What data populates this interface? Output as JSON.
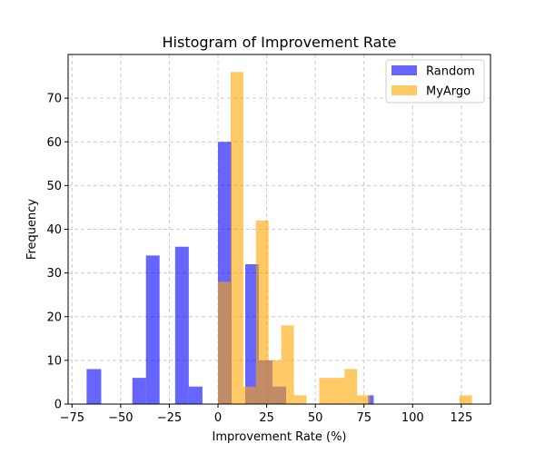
{
  "chart_data": {
    "type": "bar",
    "title": "Histogram of Improvement Rate",
    "xlabel": "Improvement Rate (%)",
    "ylabel": "Frequency",
    "xlim": [
      -77,
      140
    ],
    "ylim": [
      0,
      80
    ],
    "xticks": [
      -75,
      -50,
      -25,
      0,
      25,
      50,
      75,
      100,
      125
    ],
    "yticks": [
      0,
      10,
      20,
      30,
      40,
      50,
      60,
      70
    ],
    "grid": true,
    "legend_position": "top-right",
    "series": [
      {
        "name": "Random",
        "color": "#0000ff",
        "opacity": 0.6,
        "bins": [
          {
            "x0": -67.5,
            "x1": -60,
            "count": 8
          },
          {
            "x0": -44,
            "x1": -37,
            "count": 6
          },
          {
            "x0": -37,
            "x1": -30,
            "count": 34
          },
          {
            "x0": -22,
            "x1": -15,
            "count": 36
          },
          {
            "x0": -15,
            "x1": -8,
            "count": 4
          },
          {
            "x0": 0,
            "x1": 7,
            "count": 60
          },
          {
            "x0": 14,
            "x1": 21,
            "count": 32
          },
          {
            "x0": 21,
            "x1": 28,
            "count": 10
          },
          {
            "x0": 28,
            "x1": 35,
            "count": 4
          },
          {
            "x0": 77,
            "x1": 80,
            "count": 2
          }
        ]
      },
      {
        "name": "MyArgo",
        "color": "#ffa500",
        "opacity": 0.6,
        "bins": [
          {
            "x0": 0,
            "x1": 6.5,
            "count": 28
          },
          {
            "x0": 6.5,
            "x1": 13,
            "count": 76
          },
          {
            "x0": 13,
            "x1": 19.5,
            "count": 4
          },
          {
            "x0": 19.5,
            "x1": 26,
            "count": 42
          },
          {
            "x0": 26,
            "x1": 32.5,
            "count": 10
          },
          {
            "x0": 32.5,
            "x1": 39,
            "count": 18
          },
          {
            "x0": 39,
            "x1": 45.5,
            "count": 2
          },
          {
            "x0": 52,
            "x1": 58.5,
            "count": 6
          },
          {
            "x0": 58.5,
            "x1": 65,
            "count": 6
          },
          {
            "x0": 65,
            "x1": 71.5,
            "count": 8
          },
          {
            "x0": 71.5,
            "x1": 78,
            "count": 2
          },
          {
            "x0": 124,
            "x1": 130.5,
            "count": 2
          }
        ]
      }
    ]
  }
}
